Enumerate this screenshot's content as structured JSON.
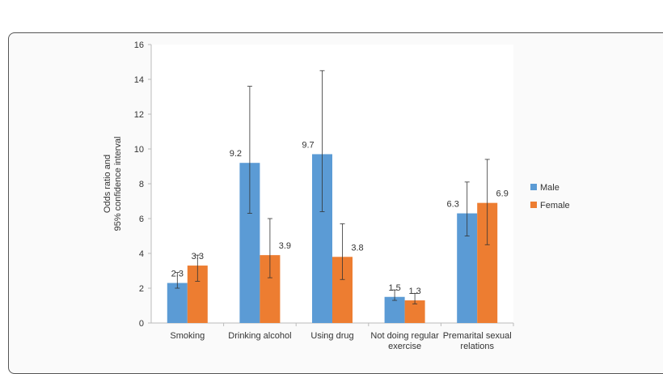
{
  "chart_data": {
    "type": "bar",
    "title": "",
    "xlabel": "",
    "ylabel": "Odds ratio and 95% confidence interval",
    "ylabel_lines": [
      "Odds ratio and",
      "95% confidence interval"
    ],
    "ylim": [
      0,
      16
    ],
    "yticks": [
      0,
      2,
      4,
      6,
      8,
      10,
      12,
      14,
      16
    ],
    "grid": false,
    "legend_position": "right",
    "categories": [
      "Smoking",
      "Drinking alcohol",
      "Using drug",
      "Not doing regular exercise",
      "Premarital sexual relations"
    ],
    "category_lines": [
      [
        "Smoking"
      ],
      [
        "Drinking alcohol"
      ],
      [
        "Using drug"
      ],
      [
        "Not doing regular",
        "exercise"
      ],
      [
        "Premarital sexual",
        "relations"
      ]
    ],
    "series": [
      {
        "name": "Male",
        "color": "#5b9bd5",
        "values": [
          2.3,
          9.2,
          9.7,
          1.5,
          6.3
        ],
        "ci_low": [
          2.0,
          6.3,
          6.4,
          1.3,
          5.0
        ],
        "ci_high": [
          2.9,
          13.6,
          14.5,
          1.9,
          8.1
        ]
      },
      {
        "name": "Female",
        "color": "#ed7d31",
        "values": [
          3.3,
          3.9,
          3.8,
          1.3,
          6.9
        ],
        "ci_low": [
          2.4,
          2.6,
          2.5,
          1.1,
          4.5
        ],
        "ci_high": [
          3.9,
          6.0,
          5.7,
          1.7,
          9.4
        ]
      }
    ]
  }
}
